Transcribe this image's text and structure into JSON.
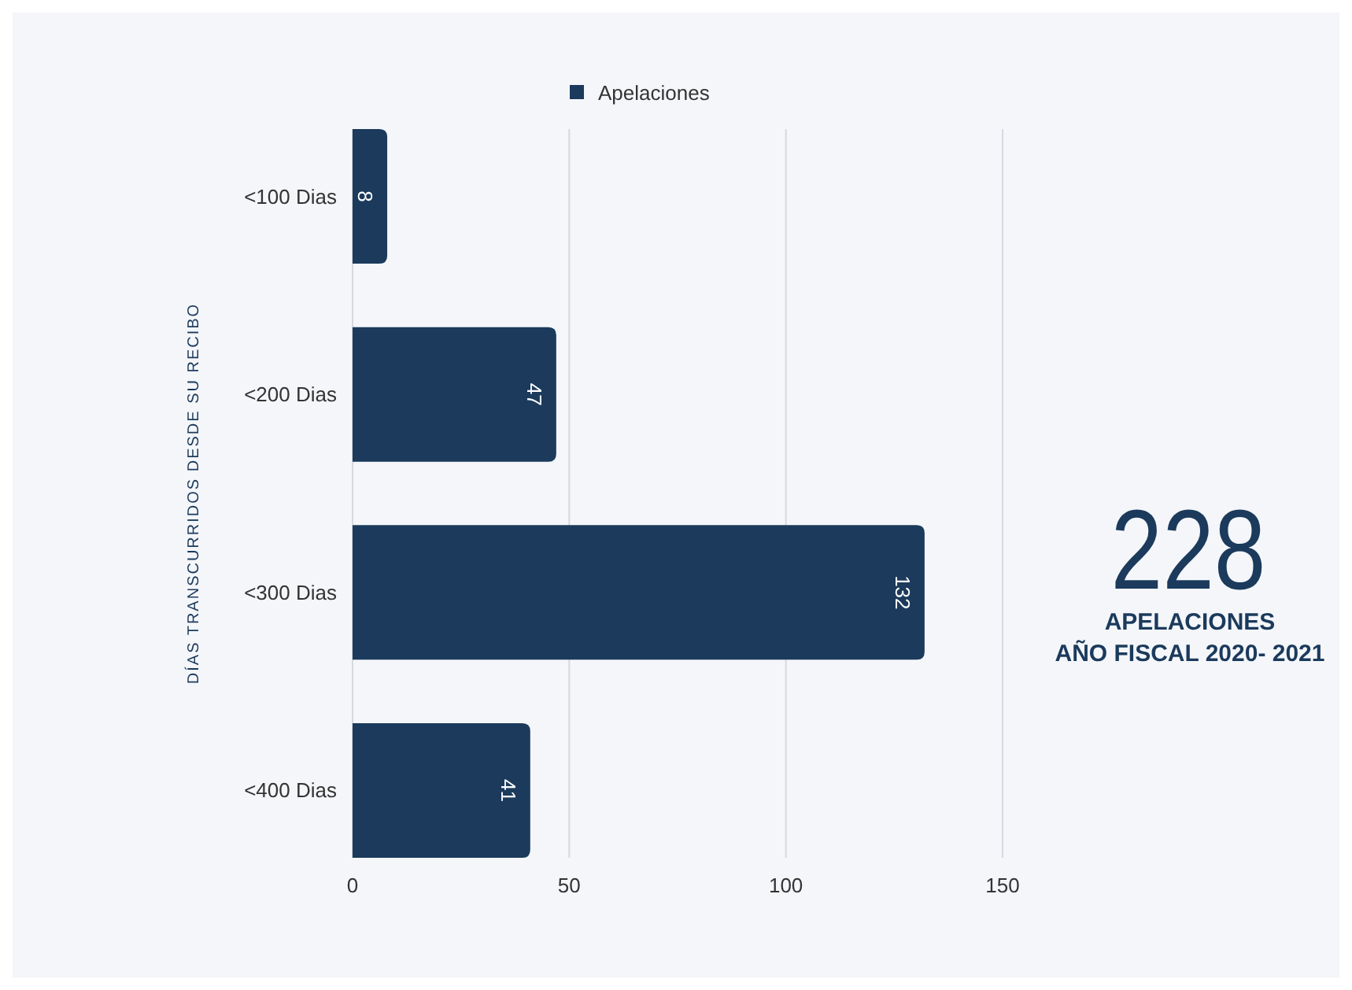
{
  "chart_data": {
    "type": "bar",
    "orientation": "horizontal",
    "ylabel": "DÍAS TRANSCURRIDOS DESDE SU RECIBO",
    "categories": [
      "<100 Dias",
      "<200 Dias",
      "<300 Dias",
      "<400 Dias"
    ],
    "series": [
      {
        "name": "Apelaciones",
        "color": "#1b3a5c",
        "values": [
          8,
          47,
          132,
          41
        ]
      }
    ],
    "xlim": [
      0,
      150
    ],
    "xticks": [
      0,
      50,
      100,
      150
    ],
    "grid": "x",
    "legend": "top",
    "data_labels": true,
    "annotations": [
      "228",
      "APELACIONES",
      "AÑO FISCAL 2020- 2021"
    ]
  }
}
